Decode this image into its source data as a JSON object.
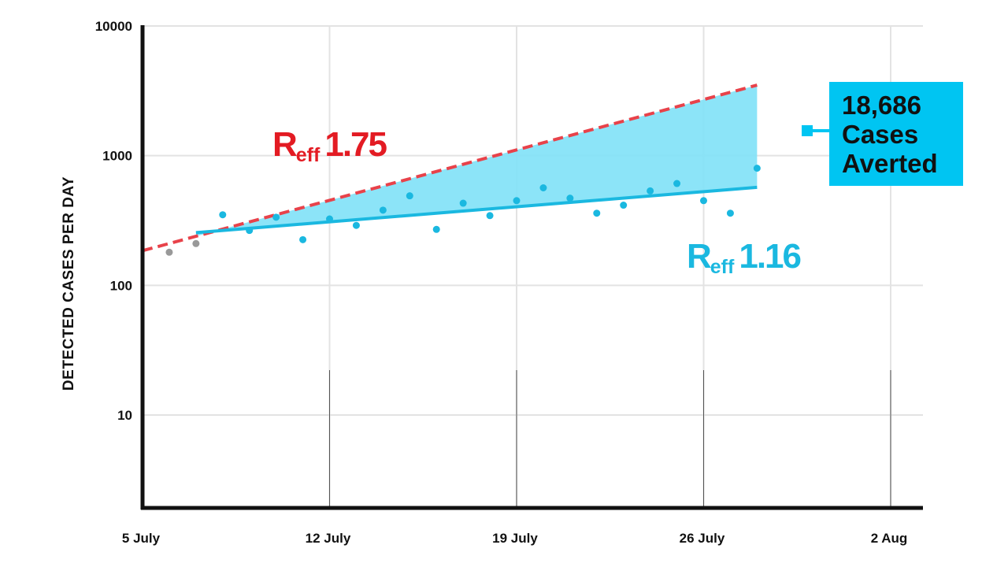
{
  "chart_data": {
    "type": "scatter",
    "ylabel": "DETECTED CASES PER DAY",
    "yscale": "log",
    "ylim": [
      2,
      10000
    ],
    "xlim": [
      "2020-07-05",
      "2020-08-02"
    ],
    "y_ticks": [
      {
        "value": 10,
        "label": "10"
      },
      {
        "value": 100,
        "label": "100"
      },
      {
        "value": 1000,
        "label": "1000"
      },
      {
        "value": 10000,
        "label": "10000"
      }
    ],
    "x_ticks": [
      {
        "date": "2020-07-05",
        "label": "5 July"
      },
      {
        "date": "2020-07-12",
        "label": "12 July"
      },
      {
        "date": "2020-07-19",
        "label": "19 July"
      },
      {
        "date": "2020-07-26",
        "label": "26 July"
      },
      {
        "date": "2020-08-02",
        "label": "2 Aug"
      }
    ],
    "grid": true,
    "series": [
      {
        "style": "grey-dots",
        "color": "#999999",
        "points": [
          {
            "x": "2020-07-06",
            "y": 180
          },
          {
            "x": "2020-07-07",
            "y": 210
          }
        ]
      },
      {
        "style": "blue-dots",
        "color": "#1ab8e0",
        "points": [
          {
            "x": "2020-07-08",
            "y": 350
          },
          {
            "x": "2020-07-09",
            "y": 265
          },
          {
            "x": "2020-07-10",
            "y": 335
          },
          {
            "x": "2020-07-11",
            "y": 225
          },
          {
            "x": "2020-07-12",
            "y": 325
          },
          {
            "x": "2020-07-13",
            "y": 290
          },
          {
            "x": "2020-07-14",
            "y": 380
          },
          {
            "x": "2020-07-15",
            "y": 490
          },
          {
            "x": "2020-07-16",
            "y": 270
          },
          {
            "x": "2020-07-17",
            "y": 430
          },
          {
            "x": "2020-07-18",
            "y": 345
          },
          {
            "x": "2020-07-19",
            "y": 450
          },
          {
            "x": "2020-07-20",
            "y": 565
          },
          {
            "x": "2020-07-21",
            "y": 470
          },
          {
            "x": "2020-07-22",
            "y": 360
          },
          {
            "x": "2020-07-23",
            "y": 415
          },
          {
            "x": "2020-07-24",
            "y": 535
          },
          {
            "x": "2020-07-25",
            "y": 610
          },
          {
            "x": "2020-07-26",
            "y": 450
          },
          {
            "x": "2020-07-27",
            "y": 360
          },
          {
            "x": "2020-07-28",
            "y": 800
          }
        ]
      }
    ],
    "lines": [
      {
        "label_main": "R",
        "label_sub": "eff",
        "label_value": "1.75",
        "style": "dashed",
        "color": "#e8424a",
        "label_color": "#e31b23",
        "points": [
          {
            "x": "2020-07-05",
            "y": 185
          },
          {
            "x": "2020-07-28",
            "y": 3500
          }
        ]
      },
      {
        "label_main": "R",
        "label_sub": "eff",
        "label_value": "1.16",
        "style": "solid",
        "color": "#1ab8e0",
        "label_color": "#1ab8e0",
        "points": [
          {
            "x": "2020-07-07",
            "y": 255
          },
          {
            "x": "2020-07-28",
            "y": 570
          }
        ]
      }
    ],
    "shaded_area": {
      "color": "#7fe1f7",
      "between": [
        "R_eff 1.75",
        "R_eff 1.16"
      ],
      "from": "2020-07-07",
      "to": "2020-07-28"
    },
    "annotation": {
      "lines": [
        "18,686",
        "Cases",
        "Averted"
      ],
      "background": "#00c5f2"
    }
  }
}
